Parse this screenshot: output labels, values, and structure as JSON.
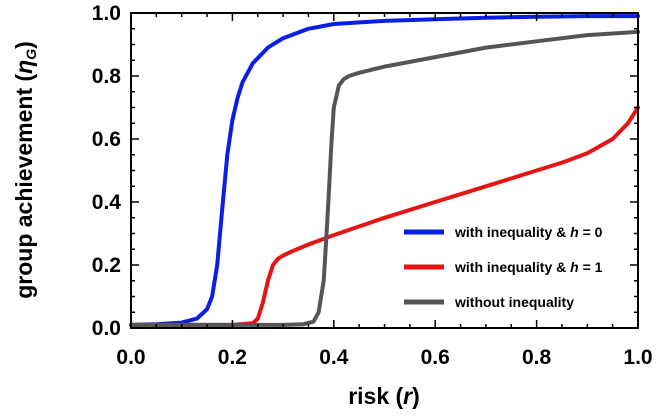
{
  "chart_data": {
    "type": "line",
    "xlabel": {
      "prefix": "risk (",
      "var": "r",
      "suffix": ")"
    },
    "ylabel": {
      "prefix": "group achievement (",
      "var": "η",
      "sub": "G",
      "suffix": ")"
    },
    "xlim": [
      0,
      1
    ],
    "ylim": [
      0,
      1
    ],
    "xticks": [
      "0.0",
      "0.2",
      "0.4",
      "0.6",
      "0.8",
      "1.0"
    ],
    "yticks": [
      "0.0",
      "0.2",
      "0.4",
      "0.6",
      "0.8",
      "1.0"
    ],
    "grid": false,
    "legend_position": "bottom-right",
    "series": [
      {
        "name": "with inequality & h = 0",
        "legend": {
          "prefix": "with inequality & ",
          "var": "h",
          "suffix": " = 0"
        },
        "color": "#0a1ee6",
        "x": [
          0.0,
          0.05,
          0.1,
          0.13,
          0.15,
          0.16,
          0.17,
          0.18,
          0.19,
          0.2,
          0.21,
          0.22,
          0.24,
          0.27,
          0.3,
          0.35,
          0.4,
          0.5,
          0.6,
          0.7,
          0.8,
          0.9,
          1.0
        ],
        "y": [
          0.01,
          0.012,
          0.017,
          0.03,
          0.06,
          0.1,
          0.2,
          0.38,
          0.55,
          0.66,
          0.73,
          0.78,
          0.84,
          0.89,
          0.92,
          0.95,
          0.965,
          0.975,
          0.98,
          0.985,
          0.988,
          0.99,
          0.99
        ]
      },
      {
        "name": "with inequality & h = 1",
        "legend": {
          "prefix": "with inequality & ",
          "var": "h",
          "suffix": " = 1"
        },
        "color": "#e61414",
        "x": [
          0.0,
          0.1,
          0.2,
          0.24,
          0.25,
          0.26,
          0.27,
          0.28,
          0.29,
          0.3,
          0.32,
          0.35,
          0.4,
          0.5,
          0.6,
          0.7,
          0.8,
          0.85,
          0.9,
          0.95,
          0.98,
          1.0
        ],
        "y": [
          0.01,
          0.01,
          0.01,
          0.015,
          0.03,
          0.08,
          0.15,
          0.2,
          0.22,
          0.23,
          0.245,
          0.265,
          0.295,
          0.35,
          0.4,
          0.45,
          0.5,
          0.525,
          0.555,
          0.6,
          0.65,
          0.7
        ]
      },
      {
        "name": "without inequality",
        "legend": {
          "prefix": "without inequality",
          "var": "",
          "suffix": ""
        },
        "color": "#555555",
        "x": [
          0.0,
          0.1,
          0.2,
          0.3,
          0.34,
          0.36,
          0.37,
          0.38,
          0.385,
          0.39,
          0.395,
          0.4,
          0.41,
          0.42,
          0.43,
          0.45,
          0.5,
          0.6,
          0.7,
          0.8,
          0.9,
          1.0
        ],
        "y": [
          0.01,
          0.01,
          0.01,
          0.01,
          0.012,
          0.02,
          0.05,
          0.15,
          0.28,
          0.42,
          0.58,
          0.7,
          0.77,
          0.79,
          0.8,
          0.81,
          0.83,
          0.86,
          0.89,
          0.91,
          0.93,
          0.94
        ]
      }
    ]
  }
}
